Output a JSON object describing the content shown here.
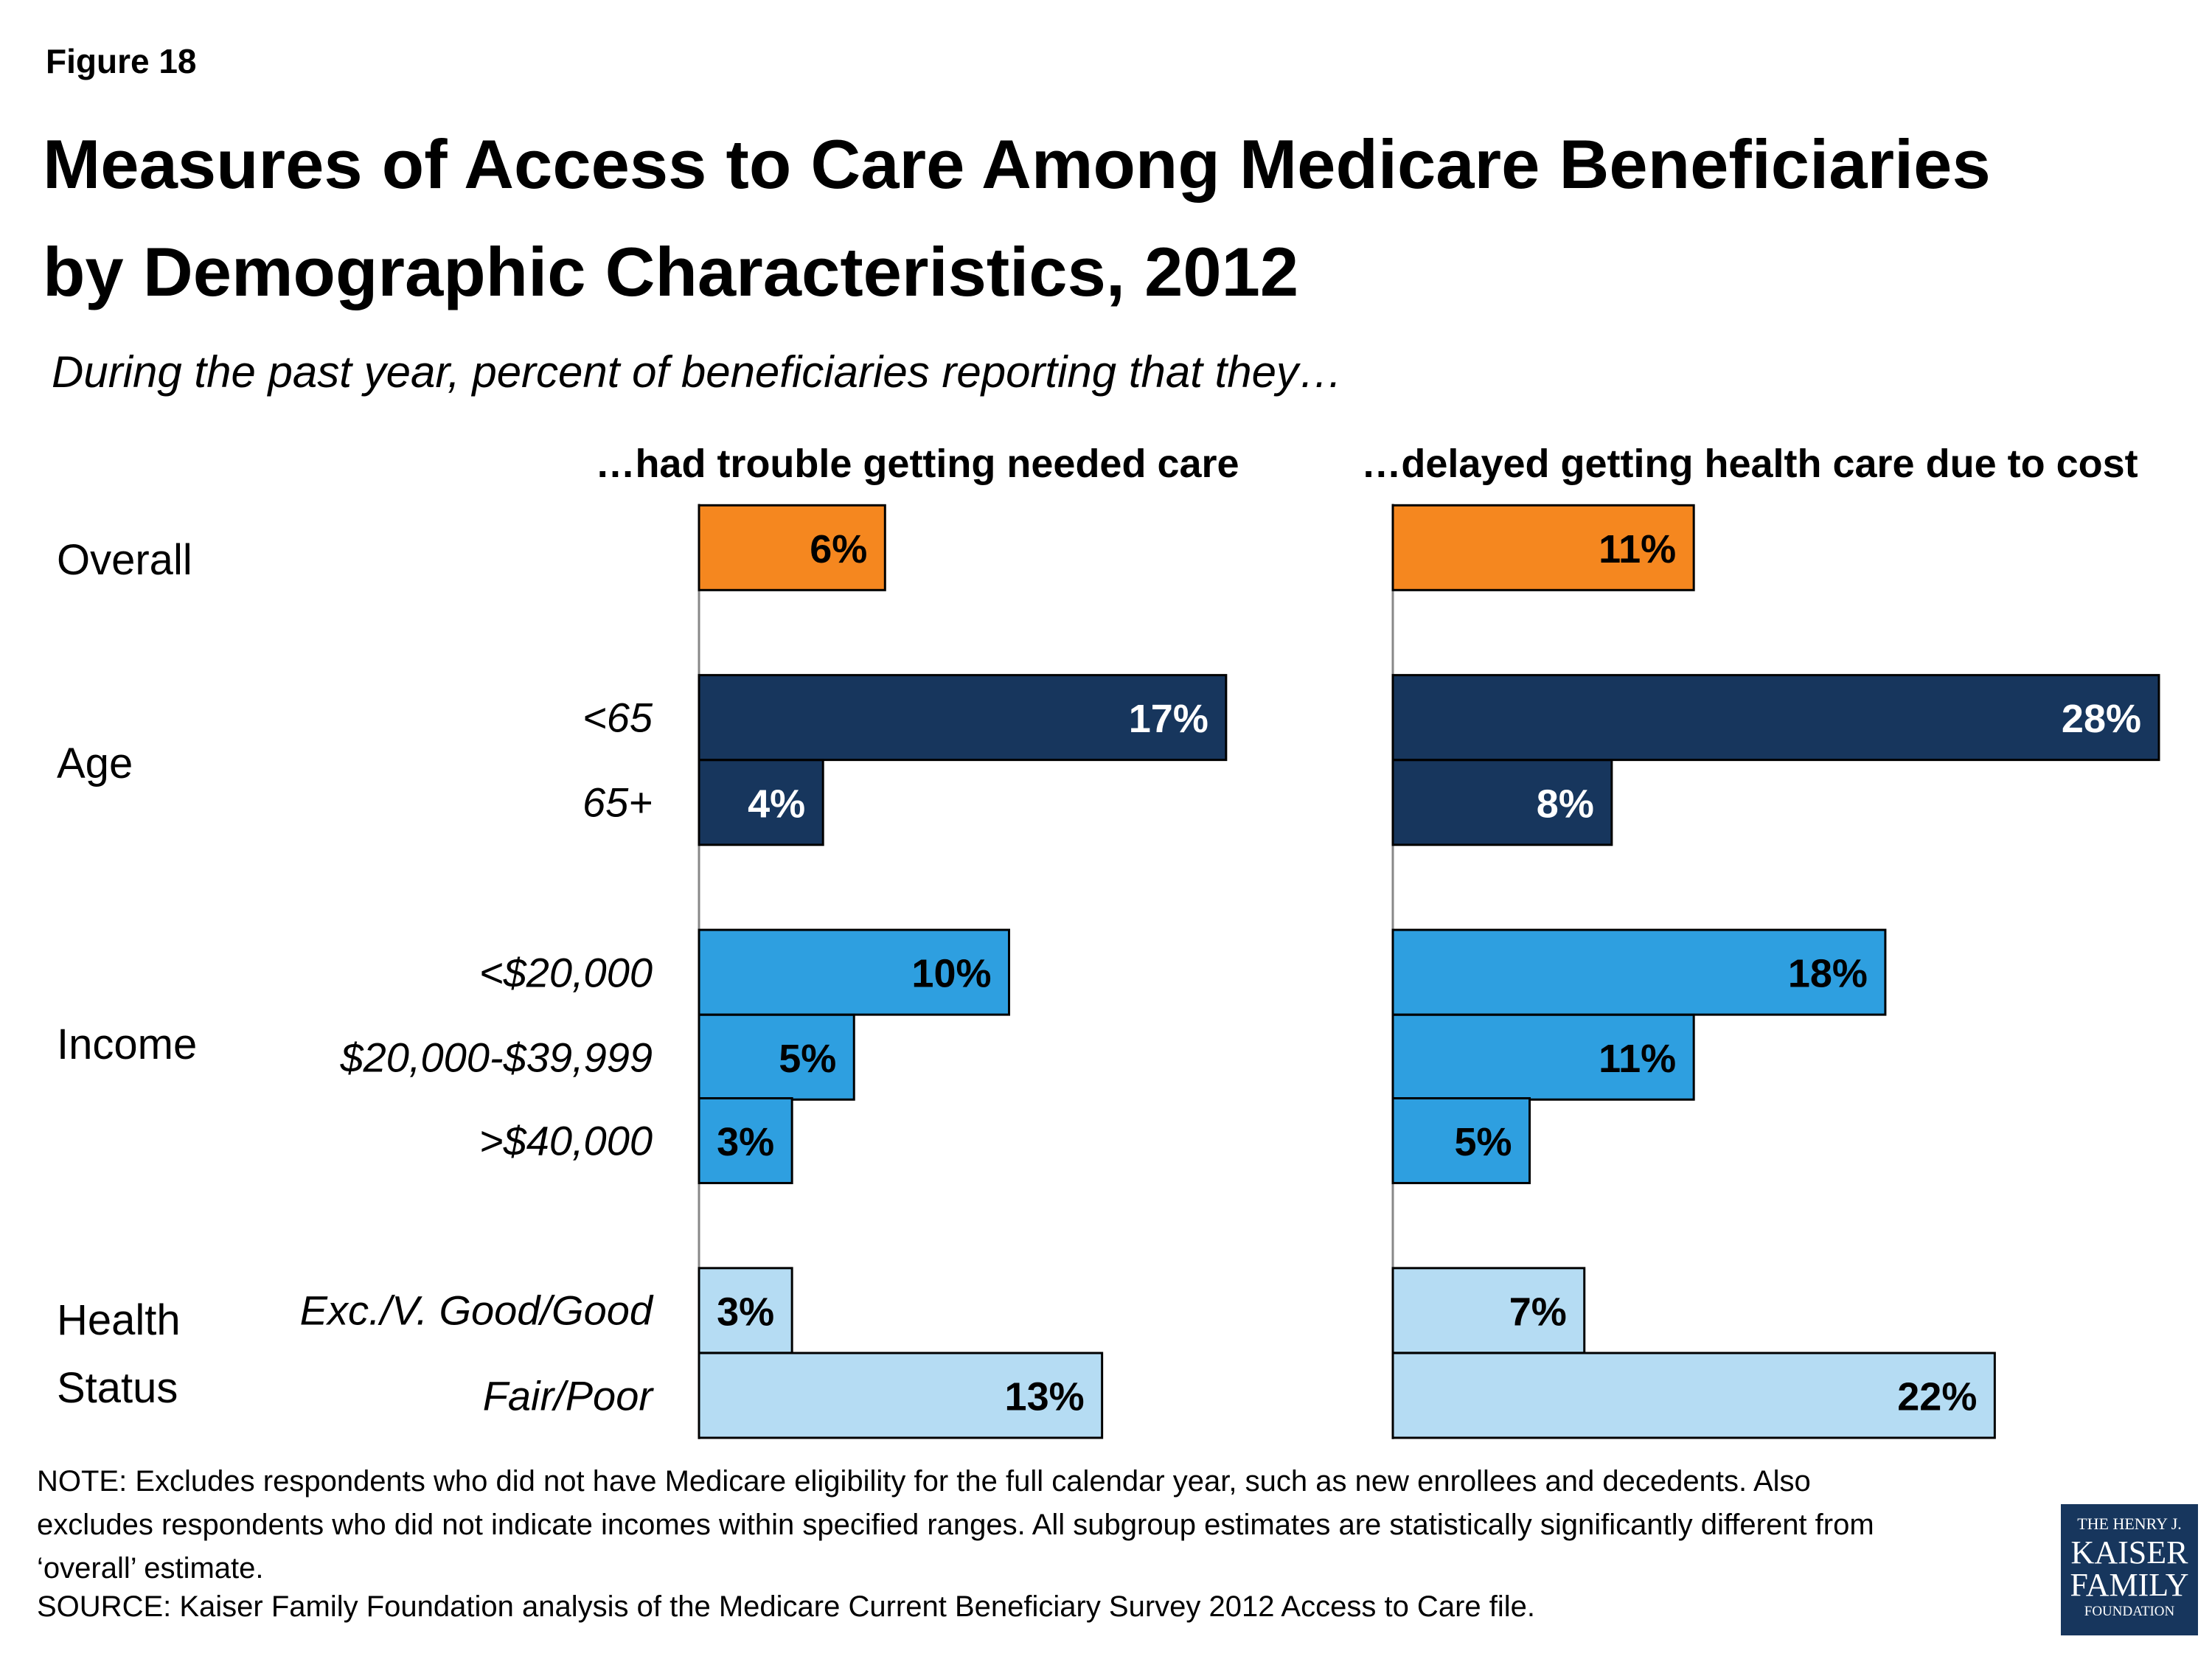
{
  "figure_label": "Figure 18",
  "title": "Measures of Access to Care Among Medicare Beneficiaries by Demographic Characteristics, 2012",
  "subtitle": "During the past year, percent of beneficiaries reporting that they…",
  "group_labels": [
    "Overall",
    "Age",
    "Income",
    "Health Status"
  ],
  "chart_data": [
    {
      "type": "bar",
      "orientation": "horizontal",
      "title": "…had trouble getting needed care",
      "categories": [
        null,
        "<65",
        "65+",
        "<$20,000",
        "$20,000-$39,999",
        ">$40,000",
        "Exc./V. Good/Good",
        "Fair/Poor"
      ],
      "values": [
        6,
        17,
        4,
        10,
        5,
        3,
        3,
        13
      ],
      "value_labels": [
        "6%",
        "17%",
        "4%",
        "10%",
        "5%",
        "3%",
        "3%",
        "13%"
      ],
      "colors": [
        "#f5871f",
        "#17365d",
        "#17365d",
        "#2e9fe0",
        "#2e9fe0",
        "#2e9fe0",
        "#b5dcf3",
        "#b5dcf3"
      ],
      "xlim": [
        0,
        20
      ]
    },
    {
      "type": "bar",
      "orientation": "horizontal",
      "title": "…delayed getting health care due to cost",
      "values": [
        11,
        28,
        8,
        18,
        11,
        5,
        7,
        22
      ],
      "value_labels": [
        "11%",
        "28%",
        "8%",
        "18%",
        "11%",
        "5%",
        "7%",
        "22%"
      ],
      "colors": [
        "#f5871f",
        "#17365d",
        "#17365d",
        "#2e9fe0",
        "#2e9fe0",
        "#2e9fe0",
        "#b5dcf3",
        "#b5dcf3"
      ],
      "xlim": [
        0,
        28
      ]
    }
  ],
  "note": "NOTE: Excludes respondents who did not have Medicare eligibility for the full calendar year, such as new enrollees and decedents.  Also excludes respondents who did not indicate incomes within specified ranges.  All subgroup estimates are statistically significantly different from ‘overall’ estimate.",
  "source": "SOURCE: Kaiser Family Foundation analysis of the Medicare Current Beneficiary Survey 2012 Access to Care file.",
  "logo": [
    "THE HENRY J.",
    "KAISER",
    "FAMILY",
    "FOUNDATION"
  ]
}
